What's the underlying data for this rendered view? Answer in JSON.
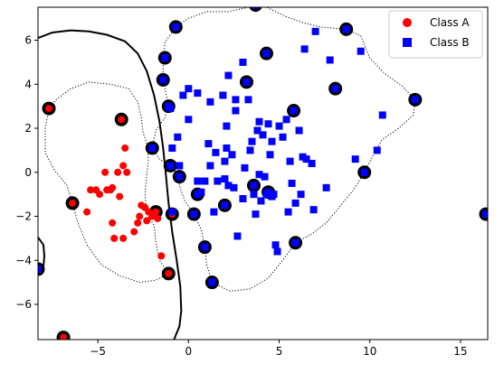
{
  "chart_data": {
    "type": "scatter",
    "title": "",
    "xlabel": "",
    "ylabel": "",
    "xlim": [
      -8.3,
      16.5
    ],
    "ylim": [
      -7.6,
      7.5
    ],
    "x_ticks": [
      -5,
      0,
      5,
      10,
      15
    ],
    "y_ticks": [
      -6,
      -4,
      -2,
      0,
      2,
      4,
      6
    ],
    "x_tick_labels": [
      "−5",
      "0",
      "5",
      "10",
      "15"
    ],
    "y_tick_labels": [
      "−6",
      "−4",
      "−2",
      "0",
      "2",
      "4",
      "6"
    ],
    "grid": false,
    "legend_position": "top-right",
    "series": [
      {
        "name": "Class A",
        "marker": "circle",
        "color": "#ff0000",
        "points": [
          [
            -5.6,
            -1.8
          ],
          [
            -5.4,
            -0.8
          ],
          [
            -5.1,
            -0.8
          ],
          [
            -4.9,
            -1.0
          ],
          [
            -4.6,
            0.0
          ],
          [
            -4.5,
            -0.8
          ],
          [
            -4.3,
            -0.8
          ],
          [
            -4.2,
            -0.7
          ],
          [
            -4.2,
            -2.3
          ],
          [
            -4.1,
            -3.0
          ],
          [
            -3.9,
            0.0
          ],
          [
            -3.8,
            -1.1
          ],
          [
            -3.6,
            0.3
          ],
          [
            -3.6,
            -3.0
          ],
          [
            -3.5,
            1.1
          ],
          [
            -3.4,
            0.0
          ],
          [
            -3.0,
            -2.7
          ],
          [
            -2.8,
            -2.3
          ],
          [
            -2.7,
            -2.0
          ],
          [
            -2.6,
            -1.5
          ],
          [
            -2.4,
            -1.6
          ],
          [
            -2.3,
            -2.2
          ],
          [
            -2.2,
            -1.8
          ],
          [
            -2.0,
            -2.0
          ],
          [
            -1.9,
            -1.9
          ],
          [
            -1.7,
            -2.1
          ],
          [
            -1.5,
            -3.8
          ],
          [
            -3.7,
            2.4
          ],
          [
            -7.7,
            2.9
          ],
          [
            -6.4,
            -1.4
          ],
          [
            -1.8,
            -1.8
          ],
          [
            -0.9,
            -1.9
          ],
          [
            -1.1,
            -4.6
          ],
          [
            -6.9,
            -7.5
          ]
        ]
      },
      {
        "name": "Class B",
        "marker": "square",
        "color": "#0000ff",
        "points": [
          [
            -1.0,
            2.9
          ],
          [
            -0.9,
            1.1
          ],
          [
            -0.6,
            1.6
          ],
          [
            -0.5,
            0.3
          ],
          [
            -0.3,
            3.5
          ],
          [
            0.0,
            2.4
          ],
          [
            0.0,
            3.8
          ],
          [
            0.5,
            3.6
          ],
          [
            0.5,
            -0.4
          ],
          [
            0.7,
            -0.9
          ],
          [
            0.9,
            -0.4
          ],
          [
            1.1,
            1.3
          ],
          [
            1.2,
            0.3
          ],
          [
            1.2,
            3.2
          ],
          [
            1.4,
            -1.8
          ],
          [
            1.5,
            0.9
          ],
          [
            1.6,
            -0.4
          ],
          [
            1.9,
            3.5
          ],
          [
            2.0,
            0.5
          ],
          [
            2.0,
            -0.3
          ],
          [
            2.1,
            2.1
          ],
          [
            2.1,
            1.1
          ],
          [
            2.2,
            -0.6
          ],
          [
            2.2,
            4.4
          ],
          [
            2.4,
            0.8
          ],
          [
            2.5,
            -0.7
          ],
          [
            2.6,
            2.8
          ],
          [
            2.6,
            3.3
          ],
          [
            2.7,
            -2.9
          ],
          [
            3.0,
            5.0
          ],
          [
            3.0,
            -1.2
          ],
          [
            3.1,
            0.2
          ],
          [
            3.3,
            3.3
          ],
          [
            3.4,
            1.0
          ],
          [
            3.5,
            1.4
          ],
          [
            3.6,
            -1.0
          ],
          [
            3.6,
            -0.6
          ],
          [
            3.7,
            -1.9
          ],
          [
            3.8,
            1.9
          ],
          [
            3.9,
            2.3
          ],
          [
            3.9,
            -0.1
          ],
          [
            4.0,
            -1.3
          ],
          [
            4.1,
            1.7
          ],
          [
            4.2,
            -0.2
          ],
          [
            4.3,
            -1.0
          ],
          [
            4.4,
            2.2
          ],
          [
            4.5,
            0.8
          ],
          [
            4.6,
            -1.1
          ],
          [
            4.6,
            1.4
          ],
          [
            4.7,
            -1.0
          ],
          [
            4.8,
            -3.3
          ],
          [
            4.9,
            -3.6
          ],
          [
            5.0,
            2.1
          ],
          [
            5.2,
            1.6
          ],
          [
            5.4,
            2.4
          ],
          [
            5.5,
            -1.8
          ],
          [
            5.6,
            0.5
          ],
          [
            5.7,
            -0.5
          ],
          [
            5.9,
            -1.4
          ],
          [
            6.1,
            1.9
          ],
          [
            6.2,
            -1.0
          ],
          [
            6.3,
            0.7
          ],
          [
            6.4,
            5.6
          ],
          [
            6.5,
            0.6
          ],
          [
            6.8,
            0.4
          ],
          [
            6.9,
            -1.7
          ],
          [
            7.0,
            6.4
          ],
          [
            7.6,
            -0.7
          ],
          [
            7.8,
            5.1
          ],
          [
            9.2,
            0.6
          ],
          [
            9.5,
            5.5
          ],
          [
            10.4,
            1.0
          ],
          [
            10.7,
            2.6
          ],
          [
            -0.9,
            -1.8
          ],
          [
            -1.1,
            3.0
          ],
          [
            -1.4,
            4.2
          ],
          [
            -1.3,
            5.2
          ],
          [
            -0.7,
            6.6
          ],
          [
            -2.0,
            1.1
          ],
          [
            -1.0,
            0.3
          ],
          [
            -0.5,
            -0.2
          ],
          [
            0.5,
            -1.0
          ],
          [
            0.3,
            -1.9
          ],
          [
            0.9,
            -3.4
          ],
          [
            1.3,
            -5.0
          ],
          [
            2.0,
            -1.5
          ],
          [
            3.2,
            4.1
          ],
          [
            3.7,
            7.6
          ],
          [
            4.3,
            5.4
          ],
          [
            3.6,
            -0.6
          ],
          [
            4.4,
            -0.9
          ],
          [
            5.8,
            2.8
          ],
          [
            5.9,
            -3.2
          ],
          [
            8.1,
            3.8
          ],
          [
            8.7,
            6.5
          ],
          [
            9.7,
            0.0
          ],
          [
            12.5,
            3.3
          ],
          [
            16.4,
            -1.9
          ],
          [
            -8.3,
            -4.4
          ]
        ]
      }
    ],
    "support_vectors": [
      [
        -7.7,
        2.9
      ],
      [
        -3.7,
        2.4
      ],
      [
        -6.4,
        -1.4
      ],
      [
        -1.8,
        -1.8
      ],
      [
        -0.9,
        -1.9
      ],
      [
        -1.1,
        -4.6
      ],
      [
        -6.9,
        -7.5
      ],
      [
        -0.7,
        6.6
      ],
      [
        -1.3,
        5.2
      ],
      [
        -1.4,
        4.2
      ],
      [
        -1.1,
        3.0
      ],
      [
        -2.0,
        1.1
      ],
      [
        -1.0,
        0.3
      ],
      [
        -0.5,
        -0.2
      ],
      [
        0.5,
        -1.0
      ],
      [
        0.3,
        -1.9
      ],
      [
        0.9,
        -3.4
      ],
      [
        1.3,
        -5.0
      ],
      [
        2.0,
        -1.5
      ],
      [
        3.2,
        4.1
      ],
      [
        3.7,
        7.6
      ],
      [
        4.3,
        5.4
      ],
      [
        3.6,
        -0.6
      ],
      [
        4.4,
        -0.9
      ],
      [
        5.8,
        2.8
      ],
      [
        5.9,
        -3.2
      ],
      [
        8.1,
        3.8
      ],
      [
        8.7,
        6.5
      ],
      [
        9.7,
        0.0
      ],
      [
        12.5,
        3.3
      ],
      [
        16.4,
        -1.9
      ],
      [
        -8.3,
        -4.4
      ]
    ],
    "decision_boundary": [
      [
        -8.3,
        6.1
      ],
      [
        -7.5,
        6.35
      ],
      [
        -6.5,
        6.45
      ],
      [
        -5.5,
        6.4
      ],
      [
        -4.5,
        6.25
      ],
      [
        -3.5,
        5.95
      ],
      [
        -2.8,
        5.4
      ],
      [
        -2.3,
        4.6
      ],
      [
        -1.9,
        3.5
      ],
      [
        -1.6,
        2.3
      ],
      [
        -1.4,
        1.1
      ],
      [
        -1.25,
        -0.1
      ],
      [
        -1.1,
        -1.4
      ],
      [
        -0.9,
        -2.7
      ],
      [
        -0.65,
        -4.0
      ],
      [
        -0.45,
        -5.2
      ],
      [
        -0.4,
        -6.3
      ],
      [
        -0.5,
        -7.0
      ],
      [
        -0.8,
        -7.6
      ]
    ],
    "decision_boundary_left": [
      [
        -8.3,
        -2.95
      ],
      [
        -8.0,
        -3.3
      ],
      [
        -7.95,
        -3.8
      ],
      [
        -8.0,
        -4.3
      ],
      [
        -8.3,
        -4.6
      ]
    ],
    "margin_left": [
      [
        -1.1,
        -4.6
      ],
      [
        -1.6,
        -4.0
      ],
      [
        -1.8,
        -3.2
      ],
      [
        -1.9,
        -2.4
      ],
      [
        -2.3,
        -1.9
      ],
      [
        -2.4,
        -1.0
      ],
      [
        -2.3,
        -0.1
      ],
      [
        -2.2,
        0.6
      ],
      [
        -2.3,
        1.3
      ],
      [
        -2.5,
        1.8
      ],
      [
        -2.6,
        2.5
      ],
      [
        -2.8,
        3.2
      ],
      [
        -3.3,
        3.8
      ],
      [
        -4.3,
        4.0
      ],
      [
        -5.5,
        4.1
      ],
      [
        -6.5,
        3.8
      ],
      [
        -7.3,
        3.3
      ],
      [
        -7.7,
        2.9
      ],
      [
        -7.9,
        2.0
      ],
      [
        -7.9,
        0.9
      ],
      [
        -7.4,
        0.1
      ],
      [
        -6.7,
        -0.6
      ],
      [
        -6.4,
        -1.4
      ],
      [
        -6.1,
        -2.3
      ],
      [
        -5.6,
        -3.3
      ],
      [
        -4.8,
        -4.2
      ],
      [
        -3.8,
        -4.7
      ],
      [
        -2.7,
        -5.0
      ],
      [
        -1.8,
        -4.9
      ],
      [
        -1.1,
        -4.6
      ]
    ],
    "margin_right": [
      [
        -1.1,
        3.0
      ],
      [
        -1.4,
        4.2
      ],
      [
        -1.4,
        5.1
      ],
      [
        -1.3,
        5.9
      ],
      [
        -0.7,
        6.6
      ],
      [
        0.0,
        7.0
      ],
      [
        1.0,
        7.3
      ],
      [
        2.2,
        7.3
      ],
      [
        3.3,
        7.5
      ],
      [
        4.3,
        7.5
      ],
      [
        5.3,
        7.1
      ],
      [
        6.3,
        6.8
      ],
      [
        7.3,
        6.6
      ],
      [
        8.7,
        6.5
      ],
      [
        9.5,
        6.2
      ],
      [
        10.0,
        5.2
      ],
      [
        10.8,
        4.5
      ],
      [
        11.8,
        3.9
      ],
      [
        12.5,
        3.3
      ],
      [
        12.4,
        2.6
      ],
      [
        11.6,
        2.0
      ],
      [
        10.7,
        1.5
      ],
      [
        10.2,
        0.8
      ],
      [
        9.7,
        0.0
      ],
      [
        9.1,
        -0.8
      ],
      [
        8.3,
        -1.6
      ],
      [
        7.6,
        -2.3
      ],
      [
        6.8,
        -2.8
      ],
      [
        5.9,
        -3.2
      ],
      [
        5.2,
        -4.0
      ],
      [
        4.4,
        -4.8
      ],
      [
        3.4,
        -5.3
      ],
      [
        2.3,
        -5.4
      ],
      [
        1.3,
        -5.0
      ],
      [
        1.0,
        -4.2
      ],
      [
        0.9,
        -3.4
      ],
      [
        0.7,
        -2.6
      ],
      [
        0.3,
        -1.9
      ],
      [
        -0.2,
        -1.3
      ],
      [
        -0.5,
        -0.6
      ],
      [
        -0.5,
        -0.2
      ],
      [
        -1.0,
        0.3
      ],
      [
        -1.6,
        0.6
      ],
      [
        -2.0,
        1.1
      ],
      [
        -1.8,
        1.9
      ],
      [
        -1.3,
        2.5
      ],
      [
        -1.1,
        3.0
      ]
    ],
    "colors": {
      "class_a": "#ff0000",
      "class_b": "#0000ff",
      "support_vector_ring": "#000000",
      "boundary": "#000000"
    }
  }
}
